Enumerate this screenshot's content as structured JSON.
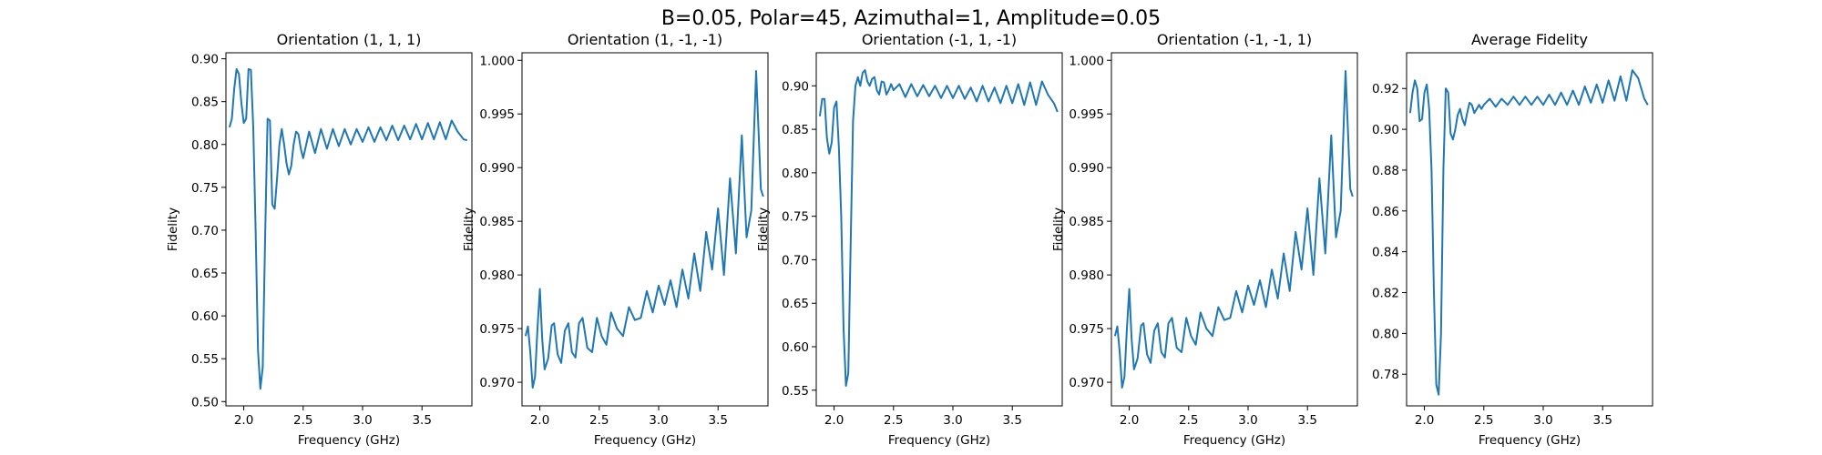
{
  "figure": {
    "suptitle": "B=0.05, Polar=45, Azimuthal=1, Amplitude=0.05"
  },
  "chart_data": [
    {
      "type": "line",
      "title": "Orientation (1, 1, 1)",
      "xlabel": "Frequency (GHz)",
      "ylabel": "Fidelity",
      "xlim": [
        1.85,
        3.92
      ],
      "ylim": [
        0.495,
        0.907
      ],
      "xticks": [
        2.0,
        2.5,
        3.0,
        3.5
      ],
      "yticks": [
        0.5,
        0.55,
        0.6,
        0.65,
        0.7,
        0.75,
        0.8,
        0.85,
        0.9
      ],
      "ytick_labels": [
        "0.50",
        "0.55",
        "0.60",
        "0.65",
        "0.70",
        "0.75",
        "0.80",
        "0.85",
        "0.90"
      ],
      "grid": false,
      "color": "#1f77b4",
      "x": [
        1.88,
        1.9,
        1.92,
        1.94,
        1.96,
        1.98,
        2.0,
        2.02,
        2.04,
        2.06,
        2.08,
        2.1,
        2.12,
        2.14,
        2.16,
        2.18,
        2.2,
        2.22,
        2.24,
        2.26,
        2.28,
        2.3,
        2.32,
        2.34,
        2.36,
        2.38,
        2.4,
        2.42,
        2.44,
        2.46,
        2.48,
        2.5,
        2.55,
        2.6,
        2.65,
        2.7,
        2.75,
        2.8,
        2.85,
        2.9,
        2.95,
        3.0,
        3.05,
        3.1,
        3.15,
        3.2,
        3.25,
        3.3,
        3.35,
        3.4,
        3.45,
        3.5,
        3.55,
        3.6,
        3.65,
        3.7,
        3.75,
        3.8,
        3.85,
        3.88
      ],
      "y": [
        0.82,
        0.83,
        0.865,
        0.888,
        0.882,
        0.848,
        0.825,
        0.83,
        0.888,
        0.887,
        0.82,
        0.7,
        0.56,
        0.515,
        0.54,
        0.69,
        0.83,
        0.828,
        0.73,
        0.725,
        0.76,
        0.8,
        0.818,
        0.8,
        0.778,
        0.765,
        0.775,
        0.8,
        0.815,
        0.812,
        0.795,
        0.784,
        0.815,
        0.79,
        0.818,
        0.795,
        0.818,
        0.798,
        0.818,
        0.8,
        0.818,
        0.803,
        0.82,
        0.803,
        0.82,
        0.805,
        0.822,
        0.805,
        0.822,
        0.806,
        0.824,
        0.806,
        0.825,
        0.806,
        0.826,
        0.806,
        0.828,
        0.815,
        0.806,
        0.805
      ]
    },
    {
      "type": "line",
      "title": "Orientation (1, -1, -1)",
      "xlabel": "Frequency (GHz)",
      "ylabel": "Fidelity",
      "xlim": [
        1.85,
        3.92
      ],
      "ylim": [
        0.9678,
        1.0007
      ],
      "xticks": [
        2.0,
        2.5,
        3.0,
        3.5
      ],
      "yticks": [
        0.97,
        0.975,
        0.98,
        0.985,
        0.99,
        0.995,
        1.0
      ],
      "ytick_labels": [
        "0.970",
        "0.975",
        "0.980",
        "0.985",
        "0.990",
        "0.995",
        "1.000"
      ],
      "grid": false,
      "color": "#1f77b4",
      "x": [
        1.88,
        1.9,
        1.92,
        1.94,
        1.96,
        1.98,
        2.0,
        2.02,
        2.04,
        2.07,
        2.1,
        2.12,
        2.15,
        2.18,
        2.21,
        2.24,
        2.27,
        2.3,
        2.33,
        2.36,
        2.4,
        2.44,
        2.48,
        2.52,
        2.56,
        2.6,
        2.65,
        2.7,
        2.75,
        2.8,
        2.85,
        2.9,
        2.95,
        3.0,
        3.05,
        3.1,
        3.15,
        3.2,
        3.25,
        3.3,
        3.35,
        3.4,
        3.45,
        3.5,
        3.55,
        3.6,
        3.65,
        3.7,
        3.74,
        3.78,
        3.82,
        3.86,
        3.88
      ],
      "y": [
        0.9743,
        0.9752,
        0.9728,
        0.9695,
        0.9705,
        0.975,
        0.9787,
        0.974,
        0.9712,
        0.9722,
        0.9753,
        0.9755,
        0.9726,
        0.9718,
        0.9748,
        0.9755,
        0.9728,
        0.9723,
        0.9755,
        0.976,
        0.9732,
        0.9728,
        0.976,
        0.9743,
        0.9735,
        0.9765,
        0.975,
        0.9743,
        0.977,
        0.9758,
        0.976,
        0.9785,
        0.9765,
        0.979,
        0.9772,
        0.9795,
        0.977,
        0.9805,
        0.9778,
        0.982,
        0.9785,
        0.984,
        0.9805,
        0.9862,
        0.98,
        0.989,
        0.982,
        0.993,
        0.9835,
        0.986,
        0.999,
        0.988,
        0.9873
      ]
    },
    {
      "type": "line",
      "title": "Orientation (-1, 1, -1)",
      "xlabel": "Frequency (GHz)",
      "ylabel": "Fidelity",
      "xlim": [
        1.85,
        3.92
      ],
      "ylim": [
        0.532,
        0.938
      ],
      "xticks": [
        2.0,
        2.5,
        3.0,
        3.5
      ],
      "yticks": [
        0.55,
        0.6,
        0.65,
        0.7,
        0.75,
        0.8,
        0.85,
        0.9
      ],
      "ytick_labels": [
        "0.55",
        "0.60",
        "0.65",
        "0.70",
        "0.75",
        "0.80",
        "0.85",
        "0.90"
      ],
      "grid": false,
      "color": "#1f77b4",
      "x": [
        1.88,
        1.9,
        1.92,
        1.94,
        1.96,
        1.98,
        2.0,
        2.02,
        2.04,
        2.06,
        2.08,
        2.1,
        2.12,
        2.14,
        2.16,
        2.18,
        2.2,
        2.22,
        2.24,
        2.26,
        2.28,
        2.3,
        2.32,
        2.34,
        2.36,
        2.38,
        2.4,
        2.42,
        2.44,
        2.46,
        2.48,
        2.5,
        2.55,
        2.6,
        2.65,
        2.7,
        2.75,
        2.8,
        2.85,
        2.9,
        2.95,
        3.0,
        3.05,
        3.1,
        3.15,
        3.2,
        3.25,
        3.3,
        3.35,
        3.4,
        3.45,
        3.5,
        3.55,
        3.6,
        3.65,
        3.7,
        3.75,
        3.8,
        3.85,
        3.88
      ],
      "y": [
        0.865,
        0.885,
        0.885,
        0.84,
        0.822,
        0.835,
        0.875,
        0.882,
        0.83,
        0.75,
        0.62,
        0.555,
        0.57,
        0.72,
        0.86,
        0.9,
        0.91,
        0.9,
        0.915,
        0.918,
        0.905,
        0.9,
        0.908,
        0.91,
        0.895,
        0.89,
        0.905,
        0.904,
        0.89,
        0.895,
        0.902,
        0.895,
        0.902,
        0.887,
        0.902,
        0.888,
        0.901,
        0.888,
        0.9,
        0.886,
        0.9,
        0.886,
        0.9,
        0.885,
        0.898,
        0.882,
        0.9,
        0.882,
        0.898,
        0.88,
        0.9,
        0.88,
        0.902,
        0.878,
        0.904,
        0.878,
        0.905,
        0.89,
        0.88,
        0.87
      ]
    },
    {
      "type": "line",
      "title": "Orientation (-1, -1, 1)",
      "xlabel": "Frequency (GHz)",
      "ylabel": "Fidelity",
      "xlim": [
        1.85,
        3.92
      ],
      "ylim": [
        0.9678,
        1.0007
      ],
      "xticks": [
        2.0,
        2.5,
        3.0,
        3.5
      ],
      "yticks": [
        0.97,
        0.975,
        0.98,
        0.985,
        0.99,
        0.995,
        1.0
      ],
      "ytick_labels": [
        "0.970",
        "0.975",
        "0.980",
        "0.985",
        "0.990",
        "0.995",
        "1.000"
      ],
      "grid": false,
      "color": "#1f77b4",
      "x": [
        1.88,
        1.9,
        1.92,
        1.94,
        1.96,
        1.98,
        2.0,
        2.02,
        2.04,
        2.07,
        2.1,
        2.12,
        2.15,
        2.18,
        2.21,
        2.24,
        2.27,
        2.3,
        2.33,
        2.36,
        2.4,
        2.44,
        2.48,
        2.52,
        2.56,
        2.6,
        2.65,
        2.7,
        2.75,
        2.8,
        2.85,
        2.9,
        2.95,
        3.0,
        3.05,
        3.1,
        3.15,
        3.2,
        3.25,
        3.3,
        3.35,
        3.4,
        3.45,
        3.5,
        3.55,
        3.6,
        3.65,
        3.7,
        3.74,
        3.78,
        3.82,
        3.86,
        3.88
      ],
      "y": [
        0.9743,
        0.9752,
        0.9728,
        0.9695,
        0.9705,
        0.975,
        0.9787,
        0.974,
        0.9712,
        0.9722,
        0.9753,
        0.9755,
        0.9726,
        0.9718,
        0.9748,
        0.9755,
        0.9728,
        0.9723,
        0.9755,
        0.976,
        0.9732,
        0.9728,
        0.976,
        0.9743,
        0.9735,
        0.9765,
        0.975,
        0.9743,
        0.977,
        0.9758,
        0.976,
        0.9785,
        0.9765,
        0.979,
        0.9772,
        0.9795,
        0.977,
        0.9805,
        0.9778,
        0.982,
        0.9785,
        0.984,
        0.9805,
        0.9862,
        0.98,
        0.989,
        0.982,
        0.993,
        0.9835,
        0.986,
        0.999,
        0.988,
        0.9873
      ]
    },
    {
      "type": "line",
      "title": "Average Fidelity",
      "xlabel": "Frequency (GHz)",
      "ylabel": "",
      "xlim": [
        1.85,
        3.92
      ],
      "ylim": [
        0.7645,
        0.9375
      ],
      "xticks": [
        2.0,
        2.5,
        3.0,
        3.5
      ],
      "yticks": [
        0.78,
        0.8,
        0.82,
        0.84,
        0.86,
        0.88,
        0.9,
        0.92
      ],
      "ytick_labels": [
        "0.78",
        "0.80",
        "0.82",
        "0.84",
        "0.86",
        "0.88",
        "0.90",
        "0.92"
      ],
      "grid": false,
      "color": "#1f77b4",
      "x": [
        1.88,
        1.9,
        1.92,
        1.94,
        1.96,
        1.98,
        2.0,
        2.02,
        2.04,
        2.06,
        2.08,
        2.1,
        2.12,
        2.14,
        2.16,
        2.18,
        2.2,
        2.22,
        2.24,
        2.26,
        2.28,
        2.3,
        2.32,
        2.34,
        2.36,
        2.38,
        2.4,
        2.42,
        2.44,
        2.46,
        2.48,
        2.5,
        2.55,
        2.6,
        2.65,
        2.7,
        2.75,
        2.8,
        2.85,
        2.9,
        2.95,
        3.0,
        3.05,
        3.1,
        3.15,
        3.2,
        3.25,
        3.3,
        3.35,
        3.4,
        3.45,
        3.5,
        3.55,
        3.6,
        3.65,
        3.7,
        3.75,
        3.8,
        3.85,
        3.88
      ],
      "y": [
        0.908,
        0.918,
        0.924,
        0.92,
        0.904,
        0.905,
        0.918,
        0.922,
        0.91,
        0.88,
        0.82,
        0.775,
        0.77,
        0.8,
        0.88,
        0.92,
        0.918,
        0.898,
        0.895,
        0.9,
        0.907,
        0.91,
        0.905,
        0.902,
        0.908,
        0.913,
        0.912,
        0.908,
        0.91,
        0.912,
        0.91,
        0.912,
        0.915,
        0.911,
        0.915,
        0.912,
        0.916,
        0.912,
        0.916,
        0.912,
        0.916,
        0.912,
        0.917,
        0.912,
        0.918,
        0.912,
        0.919,
        0.912,
        0.921,
        0.913,
        0.922,
        0.913,
        0.924,
        0.914,
        0.926,
        0.914,
        0.929,
        0.925,
        0.915,
        0.912
      ]
    }
  ]
}
